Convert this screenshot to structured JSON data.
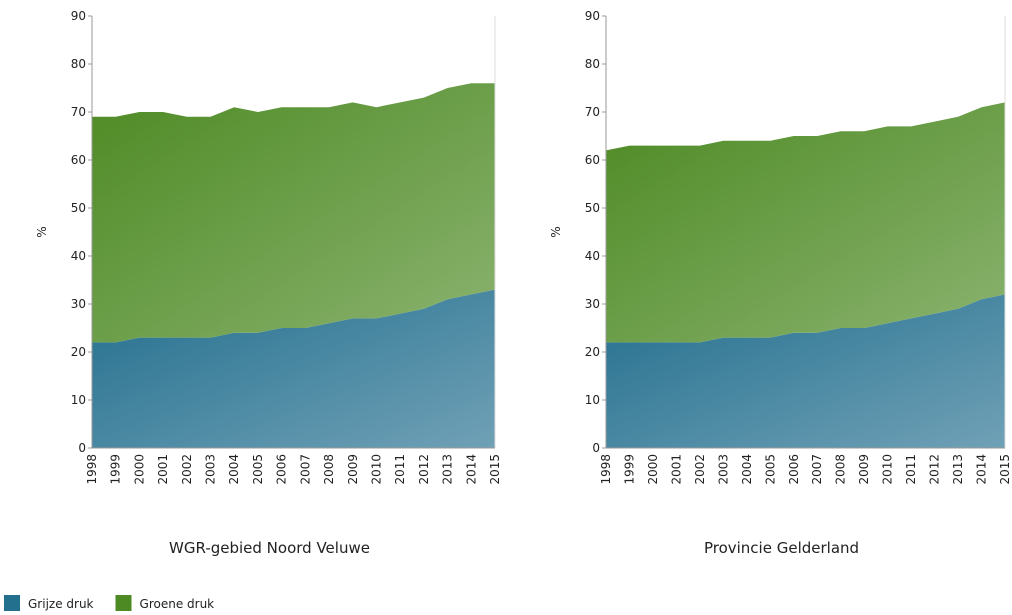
{
  "chart_data": [
    {
      "type": "area",
      "stacked": true,
      "title": "WGR-gebied Noord Veluwe",
      "ylabel": "%",
      "categories": [
        "1998",
        "1999",
        "2000",
        "2001",
        "2002",
        "2003",
        "2004",
        "2005",
        "2006",
        "2007",
        "2008",
        "2009",
        "2010",
        "2011",
        "2012",
        "2013",
        "2014",
        "2015"
      ],
      "series": [
        {
          "name": "Grijze druk",
          "color": "#236f8e",
          "values": [
            22,
            22,
            23,
            23,
            23,
            23,
            24,
            24,
            25,
            25,
            26,
            27,
            27,
            28,
            29,
            31,
            32,
            33
          ]
        },
        {
          "name": "Groene druk",
          "color": "#4d8a23",
          "values": [
            47,
            47,
            47,
            47,
            46,
            46,
            47,
            46,
            46,
            46,
            45,
            45,
            44,
            44,
            44,
            44,
            44,
            43
          ]
        }
      ],
      "ylim": [
        0,
        90
      ],
      "yticks": [
        0,
        10,
        20,
        30,
        40,
        50,
        60,
        70,
        80,
        90
      ]
    },
    {
      "type": "area",
      "stacked": true,
      "title": "Provincie Gelderland",
      "ylabel": "%",
      "categories": [
        "1998",
        "1999",
        "2000",
        "2001",
        "2002",
        "2003",
        "2004",
        "2005",
        "2006",
        "2007",
        "2008",
        "2009",
        "2010",
        "2011",
        "2012",
        "2013",
        "2014",
        "2015"
      ],
      "series": [
        {
          "name": "Grijze druk",
          "color": "#236f8e",
          "values": [
            22,
            22,
            22,
            22,
            22,
            23,
            23,
            23,
            24,
            24,
            25,
            25,
            26,
            27,
            28,
            29,
            31,
            32
          ]
        },
        {
          "name": "Groene druk",
          "color": "#4d8a23",
          "values": [
            40,
            41,
            41,
            41,
            41,
            41,
            41,
            41,
            41,
            41,
            41,
            41,
            41,
            40,
            40,
            40,
            40,
            40
          ]
        }
      ],
      "ylim": [
        0,
        90
      ],
      "yticks": [
        0,
        10,
        20,
        30,
        40,
        50,
        60,
        70,
        80,
        90
      ]
    }
  ]
}
